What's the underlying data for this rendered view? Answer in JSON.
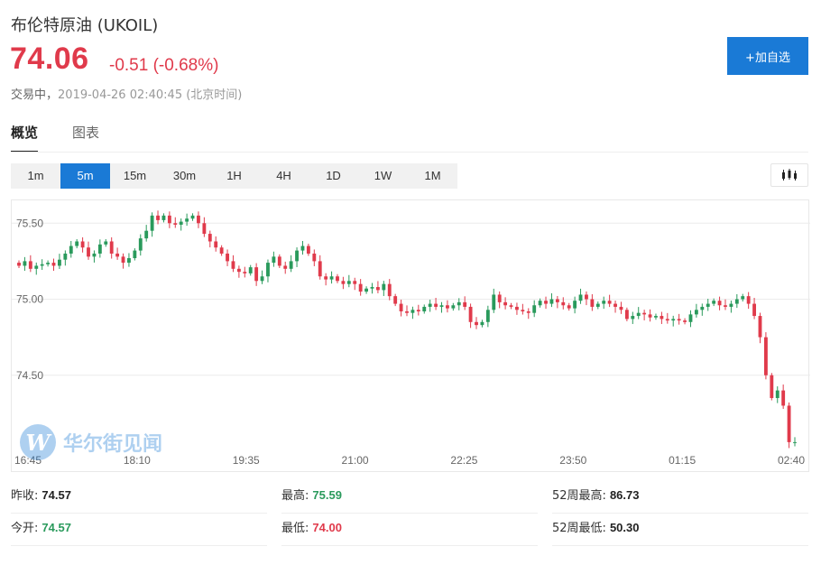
{
  "header": {
    "title": "布伦特原油 (UKOIL)",
    "price": "74.06",
    "change": "-0.51 (-0.68%)",
    "status": "交易中",
    "timestamp": "2019-04-26 02:40:45 (北京时间)",
    "add_button": "+加自选"
  },
  "tabs": [
    {
      "label": "概览",
      "active": true
    },
    {
      "label": "图表",
      "active": false
    }
  ],
  "periods": [
    {
      "label": "1m",
      "active": false
    },
    {
      "label": "5m",
      "active": true
    },
    {
      "label": "15m",
      "active": false
    },
    {
      "label": "30m",
      "active": false
    },
    {
      "label": "1H",
      "active": false
    },
    {
      "label": "4H",
      "active": false
    },
    {
      "label": "1D",
      "active": false
    },
    {
      "label": "1W",
      "active": false
    },
    {
      "label": "1M",
      "active": false
    }
  ],
  "chart_type_icon": "candlestick-icon",
  "watermark": {
    "logo": "W",
    "text": "华尔街见闻"
  },
  "colors": {
    "up": "#2a9a5c",
    "down": "#e03a4b",
    "accent": "#1a7ad6"
  },
  "chart_data": {
    "type": "candlestick",
    "x_tick_labels": [
      "16:45",
      "18:10",
      "19:35",
      "21:00",
      "22:25",
      "23:50",
      "01:15",
      "02:40"
    ],
    "y_ticks": [
      75.5,
      75.0,
      74.5
    ],
    "y_tick_labels": [
      "75.50",
      "75.00",
      "74.50"
    ],
    "ylim": [
      74.0,
      75.65
    ],
    "grid": true,
    "closes": [
      75.22,
      75.25,
      75.2,
      75.22,
      75.23,
      75.24,
      75.22,
      75.26,
      75.3,
      75.35,
      75.38,
      75.34,
      75.28,
      75.3,
      75.36,
      75.38,
      75.3,
      75.28,
      75.24,
      75.27,
      75.32,
      75.4,
      75.45,
      75.55,
      75.52,
      75.55,
      75.5,
      75.49,
      75.51,
      75.53,
      75.55,
      75.5,
      75.43,
      75.38,
      75.34,
      75.3,
      75.25,
      75.2,
      75.18,
      75.17,
      75.21,
      75.12,
      75.15,
      75.24,
      75.28,
      75.22,
      75.2,
      75.25,
      75.32,
      75.35,
      75.3,
      75.25,
      75.15,
      75.13,
      75.15,
      75.12,
      75.1,
      75.12,
      75.1,
      75.05,
      75.07,
      75.08,
      75.06,
      75.1,
      75.02,
      74.97,
      74.92,
      74.91,
      74.93,
      74.92,
      74.95,
      74.97,
      74.95,
      74.96,
      74.94,
      74.96,
      74.98,
      74.95,
      74.85,
      74.83,
      74.85,
      74.93,
      75.03,
      74.98,
      74.96,
      74.95,
      74.93,
      74.92,
      74.91,
      74.96,
      74.99,
      74.97,
      75.0,
      74.98,
      74.96,
      74.94,
      74.99,
      75.03,
      75.0,
      74.95,
      74.97,
      74.99,
      74.97,
      74.95,
      74.93,
      74.87,
      74.89,
      74.91,
      74.9,
      74.88,
      74.89,
      74.87,
      74.86,
      74.87,
      74.86,
      74.85,
      74.9,
      74.93,
      74.95,
      74.97,
      74.99,
      74.96,
      74.95,
      74.97,
      75.0,
      75.02,
      74.97,
      74.89,
      74.75,
      74.5,
      74.35,
      74.4,
      74.3,
      74.06,
      74.06
    ]
  },
  "stats": [
    {
      "label": "昨收:",
      "value": "74.57",
      "color": "dark"
    },
    {
      "label": "最高:",
      "value": "75.59",
      "color": "green"
    },
    {
      "label": "52周最高:",
      "value": "86.73",
      "color": "dark"
    },
    {
      "label": "今开:",
      "value": "74.57",
      "color": "green"
    },
    {
      "label": "最低:",
      "value": "74.00",
      "color": "red"
    },
    {
      "label": "52周最低:",
      "value": "50.30",
      "color": "dark"
    }
  ]
}
